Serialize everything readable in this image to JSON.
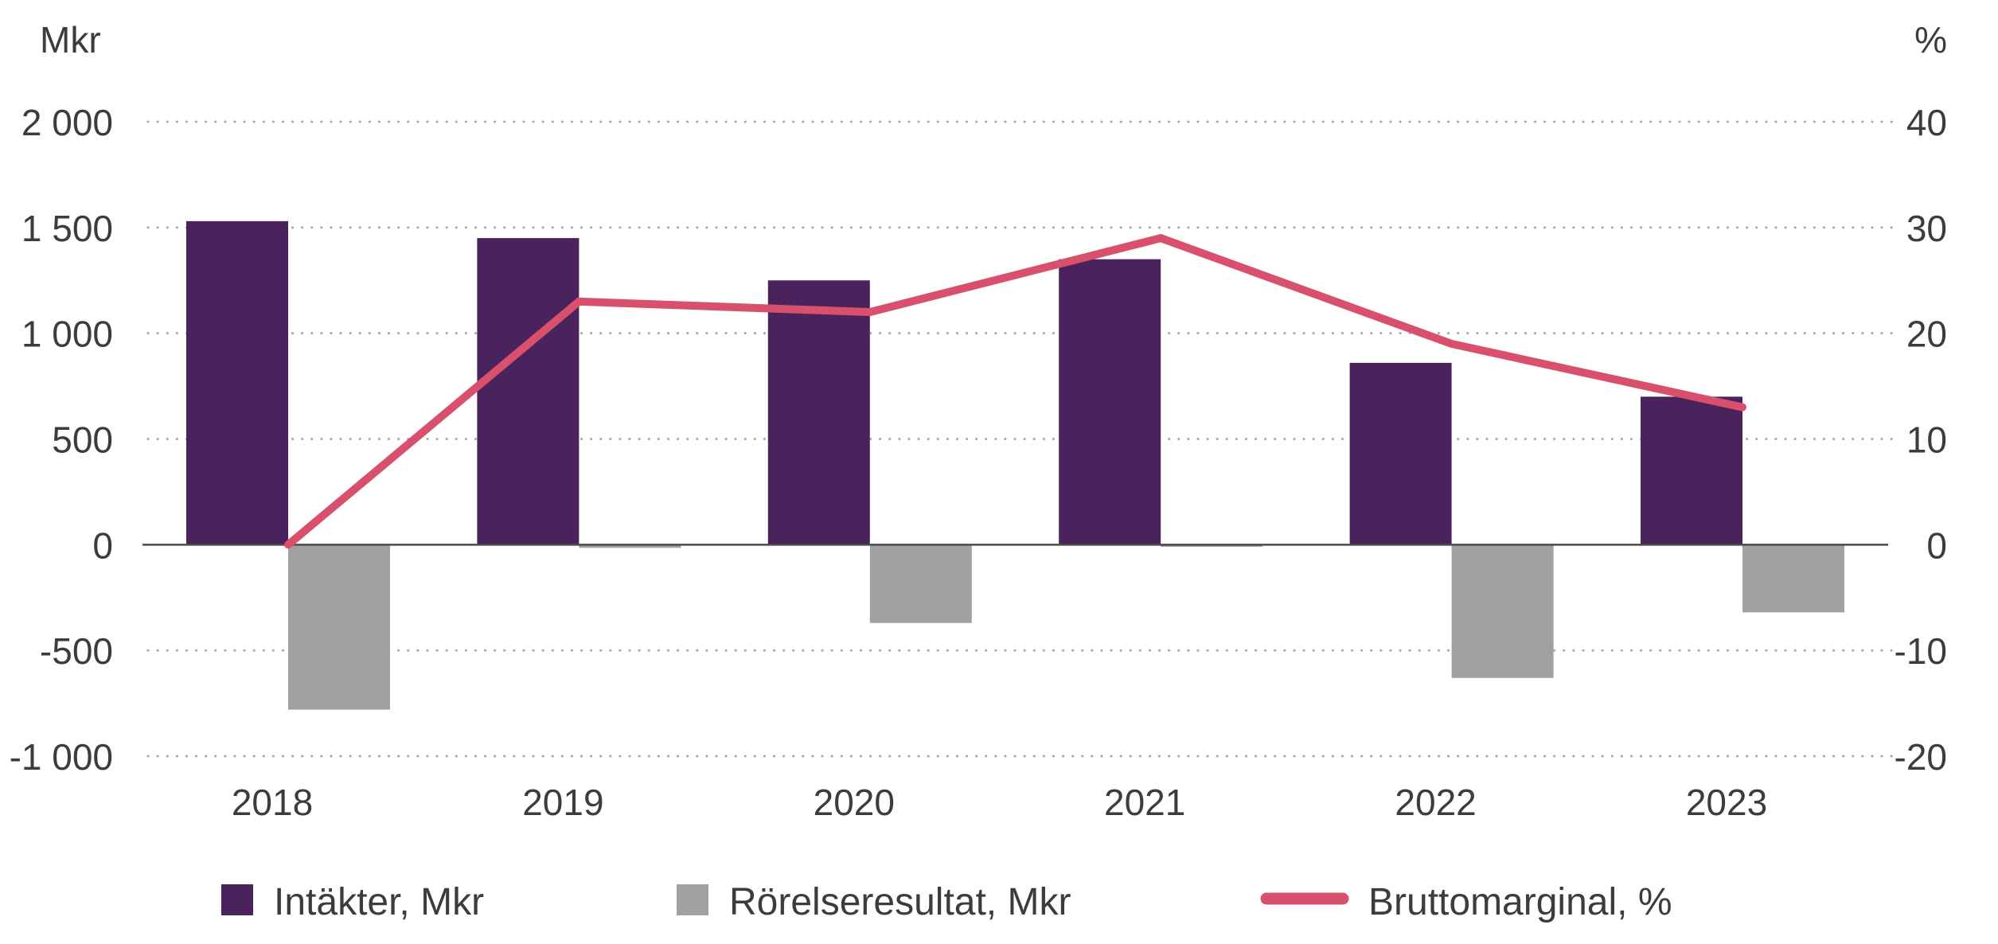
{
  "chart_data": {
    "type": "bar",
    "title": "",
    "categories": [
      "2018",
      "2019",
      "2020",
      "2021",
      "2022",
      "2023"
    ],
    "left_axis": {
      "label": "Mkr",
      "range": [
        -1000,
        2000
      ],
      "ticks": [
        2000,
        1500,
        1000,
        500,
        0,
        -500,
        -1000
      ],
      "tick_labels": [
        "2 000",
        "1 500",
        "1 000",
        "500",
        "0",
        "-500",
        "-1 000"
      ]
    },
    "right_axis": {
      "label": "%",
      "range": [
        -20,
        40
      ],
      "ticks": [
        40,
        30,
        20,
        10,
        0,
        -10,
        -20
      ],
      "tick_labels": [
        "40",
        "30",
        "20",
        "10",
        "0",
        "-10",
        "-20"
      ]
    },
    "grid": true,
    "legend_position": "bottom",
    "series": [
      {
        "name": "Intäkter, Mkr",
        "type": "bar",
        "axis": "left",
        "color": "#4a235c",
        "values": [
          1530,
          1450,
          1250,
          1350,
          860,
          700
        ]
      },
      {
        "name": "Rörelseresultat, Mkr",
        "type": "bar",
        "axis": "left",
        "color": "#a19fa2",
        "values": [
          -780,
          -15,
          -370,
          -10,
          -630,
          -320
        ]
      },
      {
        "name": "Bruttomarginal, %",
        "type": "line",
        "axis": "right",
        "color": "#d9506c",
        "values": [
          0,
          23,
          22,
          29,
          19,
          13
        ]
      }
    ]
  }
}
